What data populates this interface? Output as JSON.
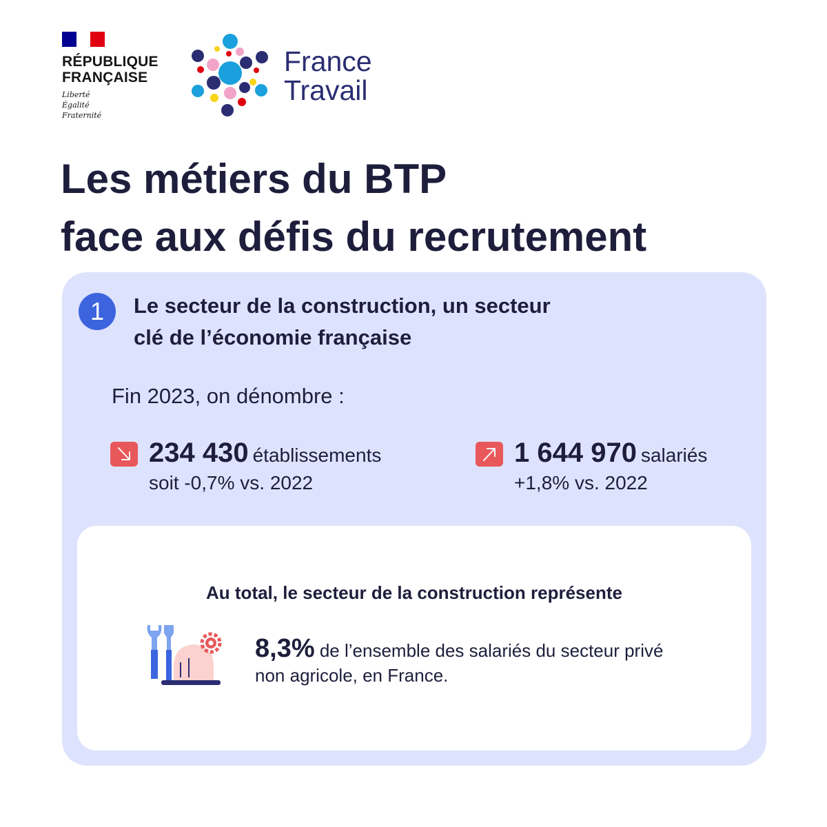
{
  "header": {
    "gov_logo": {
      "name_line1": "RÉPUBLIQUE",
      "name_line2": "FRANÇAISE",
      "motto": [
        "Liberté",
        "Égalité",
        "Fraternité"
      ],
      "flag_colors": [
        "#000091",
        "#ffffff",
        "#e1000f"
      ]
    },
    "brand_logo": {
      "line1": "France",
      "line2": "Travail",
      "icon": "bubbles-logo-icon",
      "color": "#2b2d72"
    }
  },
  "title": {
    "line1": "Les métiers du BTP",
    "line2": "face aux défis du recrutement"
  },
  "section": {
    "number": "1",
    "title_line1": "Le secteur de la construction, un secteur",
    "title_line2": "clé de l’économie française",
    "intro": "Fin 2023, on dénombre :",
    "stats": [
      {
        "icon": "arrow-down-right-icon",
        "value": "234 430",
        "unit": "établissements",
        "change": "soit -0,7% vs. 2022"
      },
      {
        "icon": "arrow-up-right-icon",
        "value": "1 644 970",
        "unit": "salariés",
        "change": "+1,8% vs. 2022"
      }
    ],
    "total": {
      "heading": "Au total, le secteur de la construction représente",
      "icon": "construction-tools-icon",
      "value": "8,3%",
      "text": " de l’ensemble des salariés du secteur privé non agricole, en France."
    }
  },
  "colors": {
    "card_background": "#dee3fd",
    "accent_blue": "#3b64de",
    "accent_red": "#e8585b",
    "text_dark": "#1e1e3c"
  }
}
